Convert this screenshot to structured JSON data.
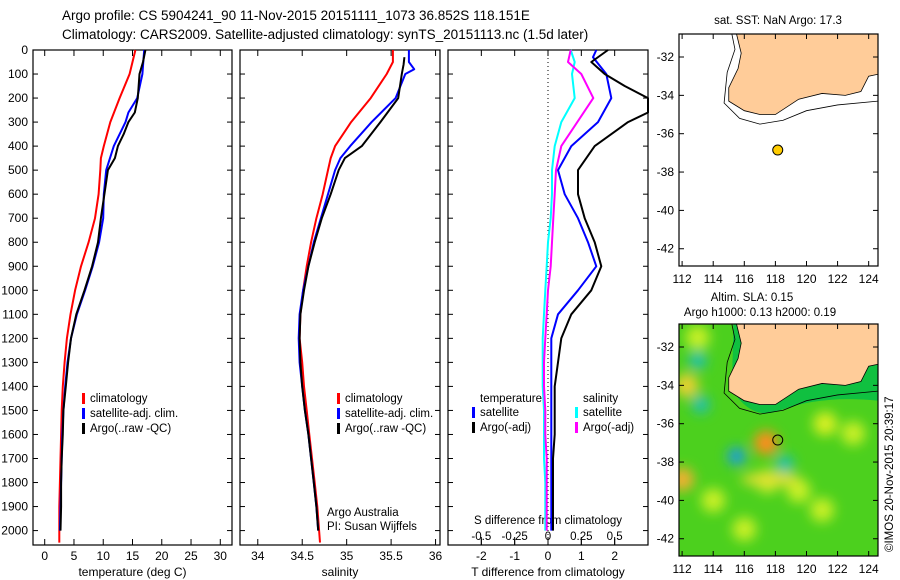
{
  "header": {
    "title_line1": "Argo profile: CS 5904241_90 11-Nov-2015 20151111_1073 36.852S 118.151E",
    "title_line2": "Climatology: CARS2009. Satellite-adjusted climatology: synTS_20151113.nc (1.5d later)"
  },
  "colors": {
    "climatology": "#ff0000",
    "satellite": "#0000ff",
    "argo": "#000000",
    "sal_satellite": "#00ffff",
    "sal_argo": "#ff00ff",
    "land": "#ffcc99",
    "float_marker": "#ffcc00"
  },
  "chart_data": [
    {
      "type": "line",
      "name": "temperature-profile",
      "xlabel": "temperature (deg C)",
      "ylabel": "depth",
      "xlim": [
        -2,
        32
      ],
      "ylim": [
        2060,
        0
      ],
      "xticks": [
        0,
        5,
        10,
        15,
        20,
        25,
        30
      ],
      "yticks": [
        0,
        100,
        200,
        300,
        400,
        500,
        600,
        700,
        800,
        900,
        1000,
        1100,
        1200,
        1300,
        1400,
        1500,
        1600,
        1700,
        1800,
        1900,
        2000
      ],
      "legend": [
        "climatology",
        "satellite-adj. clim.",
        "Argo(..raw -QC)"
      ],
      "legend_position": "middle-center",
      "series": [
        {
          "name": "climatology",
          "depth": [
            0,
            100,
            200,
            300,
            400,
            450,
            500,
            600,
            700,
            800,
            900,
            1000,
            1100,
            1200,
            1300,
            1400,
            1500,
            1600,
            1700,
            1800,
            1900,
            2000,
            2050
          ],
          "values": [
            15.5,
            14.5,
            12.8,
            11.2,
            10.1,
            9.6,
            9.5,
            9.2,
            8.6,
            7.5,
            6.2,
            5.2,
            4.4,
            3.8,
            3.4,
            3.1,
            2.9,
            2.8,
            2.7,
            2.6,
            2.5,
            2.5,
            2.5
          ]
        },
        {
          "name": "satellite-adj. clim.",
          "depth": [
            0,
            100,
            200,
            260,
            300,
            400,
            500,
            600,
            700,
            800,
            900,
            1000,
            1100,
            1200,
            1300,
            1400,
            1500,
            1600,
            1700,
            1800,
            1900,
            2000
          ],
          "values": [
            17.0,
            16.7,
            15.8,
            14.3,
            13.8,
            11.8,
            10.5,
            10.1,
            10.0,
            9.3,
            8.2,
            6.9,
            5.5,
            4.5,
            3.9,
            3.5,
            3.2,
            3.0,
            2.9,
            2.8,
            2.7,
            2.6
          ]
        },
        {
          "name": "Argo(..raw -QC)",
          "depth": [
            0,
            50,
            100,
            200,
            260,
            300,
            350,
            400,
            450,
            500,
            600,
            700,
            800,
            900,
            1000,
            1100,
            1200,
            1300,
            1400,
            1500,
            1600,
            1700,
            1800,
            1900,
            2000
          ],
          "values": [
            17.2,
            16.8,
            16.2,
            15.9,
            15.4,
            14.3,
            13.5,
            12.5,
            12.0,
            10.8,
            10.2,
            9.6,
            9.1,
            8.1,
            6.8,
            5.4,
            4.5,
            4.0,
            3.6,
            3.2,
            3.1,
            2.9,
            2.8,
            2.8,
            2.7
          ]
        }
      ]
    },
    {
      "type": "line",
      "name": "salinity-profile",
      "xlabel": "salinity",
      "ylabel": "depth",
      "xlim": [
        33.8,
        36.05
      ],
      "ylim": [
        2060,
        0
      ],
      "xticks": [
        34,
        34.5,
        35,
        35.5,
        36
      ],
      "legend": [
        "climatology",
        "satellite-adj. clim.",
        "Argo(..raw -QC)"
      ],
      "legend_position": "middle-center",
      "annotation": [
        "Argo Australia",
        "PI: Susan Wijffels"
      ],
      "series": [
        {
          "name": "climatology",
          "depth": [
            0,
            50,
            100,
            200,
            300,
            400,
            450,
            500,
            600,
            700,
            800,
            900,
            1000,
            1100,
            1200,
            1300,
            1400,
            1500,
            1600,
            1700,
            1800,
            1900,
            2000,
            2050
          ],
          "values": [
            35.52,
            35.52,
            35.45,
            35.27,
            35.05,
            34.87,
            34.82,
            34.79,
            34.73,
            34.66,
            34.6,
            34.55,
            34.51,
            34.48,
            34.47,
            34.5,
            34.52,
            34.55,
            34.58,
            34.61,
            34.64,
            34.67,
            34.69,
            34.7
          ]
        },
        {
          "name": "satellite-adj. clim.",
          "depth": [
            0,
            50,
            80,
            100,
            200,
            300,
            400,
            450,
            500,
            600,
            700,
            800,
            900,
            1000,
            1100,
            1200,
            1300,
            1400,
            1500,
            1600,
            1700,
            1800,
            1900,
            2000
          ],
          "values": [
            35.7,
            35.7,
            35.76,
            35.66,
            35.55,
            35.28,
            35.04,
            34.93,
            34.87,
            34.79,
            34.71,
            34.63,
            34.57,
            34.51,
            34.47,
            34.46,
            34.47,
            34.5,
            34.53,
            34.57,
            34.6,
            34.63,
            34.66,
            34.68
          ]
        },
        {
          "name": "Argo(..raw -QC)",
          "depth": [
            30,
            60,
            100,
            200,
            300,
            400,
            450,
            500,
            600,
            700,
            800,
            900,
            1000,
            1100,
            1200,
            1300,
            1400,
            1500,
            1600,
            1700,
            1800,
            1900,
            2000
          ],
          "values": [
            35.65,
            35.64,
            35.62,
            35.58,
            35.38,
            35.17,
            34.98,
            34.91,
            34.82,
            34.72,
            34.64,
            34.57,
            34.52,
            34.48,
            34.47,
            34.48,
            34.5,
            34.53,
            34.57,
            34.6,
            34.63,
            34.66,
            34.68
          ]
        }
      ]
    },
    {
      "type": "line",
      "name": "difference-profile",
      "xlabel": "T difference from climatology",
      "xlabel_top": "S difference from climatology",
      "xlim": [
        -3,
        3
      ],
      "ylim": [
        2060,
        0
      ],
      "xticks": [
        -2,
        -1,
        0,
        1,
        2
      ],
      "xticks_s": [
        -0.5,
        -0.25,
        0,
        0.25,
        0.5
      ],
      "xtick_labels_s": [
        "-0.5",
        "-0.25",
        "0",
        "0.25",
        "0.5"
      ],
      "zero_line": "dotted",
      "legend": {
        "temperature_header": "temperature",
        "salinity_header": "salinity",
        "items": [
          "satellite",
          "Argo(-adj)",
          "satellite",
          "Argo(-adj)"
        ]
      },
      "series": [
        {
          "name": "T satellite",
          "depth": [
            0,
            30,
            100,
            200,
            300,
            400,
            500,
            600,
            700,
            800,
            900,
            1000,
            1100,
            1200,
            1300,
            1400,
            1500,
            1600,
            1700,
            1800,
            1900,
            2000
          ],
          "values": [
            1.45,
            1.35,
            1.75,
            1.9,
            1.5,
            0.7,
            0.3,
            0.5,
            0.9,
            1.2,
            1.45,
            0.9,
            0.3,
            0.1,
            0.1,
            0.1,
            0.1,
            0.1,
            0.1,
            0.1,
            0.1,
            0.1
          ]
        },
        {
          "name": "T Argo(-adj)",
          "depth": [
            0,
            50,
            100,
            150,
            200,
            260,
            300,
            400,
            500,
            600,
            700,
            800,
            900,
            1000,
            1100,
            1200,
            1300,
            1400,
            1500,
            1600,
            1700,
            1800,
            1900,
            2000
          ],
          "values": [
            1.8,
            1.3,
            1.7,
            2.3,
            3.0,
            3.0,
            2.4,
            1.4,
            0.9,
            0.9,
            1.1,
            1.4,
            1.6,
            1.3,
            0.7,
            0.4,
            0.3,
            0.2,
            0.2,
            0.2,
            0.15,
            0.15,
            0.15,
            0.15
          ]
        },
        {
          "name": "S satellite",
          "depth": [
            0,
            50,
            100,
            200,
            300,
            400,
            500,
            600,
            700,
            800,
            900,
            1000,
            1100,
            1200,
            1300,
            1400,
            1500,
            1600,
            1700,
            1800,
            1900,
            2000
          ],
          "values": [
            0.17,
            0.2,
            0.18,
            0.2,
            0.1,
            0.05,
            0.03,
            0.03,
            0.02,
            0.0,
            -0.01,
            -0.02,
            -0.03,
            -0.04,
            -0.04,
            -0.04,
            -0.03,
            -0.03,
            -0.03,
            -0.02,
            -0.02,
            -0.02
          ]
        },
        {
          "name": "S Argo(-adj)",
          "depth": [
            0,
            50,
            100,
            200,
            300,
            400,
            500,
            600,
            700,
            800,
            900,
            1000,
            1100,
            1200,
            1300,
            1400,
            1500,
            1600,
            1700,
            1800,
            1900,
            2000
          ],
          "values": [
            0.17,
            0.15,
            0.25,
            0.34,
            0.22,
            0.1,
            0.06,
            0.05,
            0.04,
            0.03,
            0.02,
            0.0,
            -0.01,
            -0.02,
            -0.03,
            -0.03,
            -0.02,
            -0.02,
            -0.01,
            -0.01,
            -0.01,
            -0.01
          ]
        }
      ]
    },
    {
      "type": "scatter",
      "name": "location-map-sst",
      "title": "sat. SST: NaN Argo: 17.3",
      "xlim": [
        111.8,
        124.6
      ],
      "ylim": [
        -42.9,
        -30.8
      ],
      "xticks": [
        112,
        114,
        116,
        118,
        120,
        122,
        124
      ],
      "yticks": [
        -32,
        -34,
        -36,
        -38,
        -40,
        -42
      ],
      "float_position": {
        "lon": 118.151,
        "lat": -36.852
      }
    },
    {
      "type": "heatmap",
      "name": "location-map-sla",
      "title_line1": "Altim. SLA: 0.15",
      "title_line2": "Argo h1000: 0.13 h2000: 0.19",
      "xlim": [
        111.8,
        124.6
      ],
      "ylim": [
        -42.9,
        -30.8
      ],
      "xticks": [
        112,
        114,
        116,
        118,
        120,
        122,
        124
      ],
      "yticks": [
        -32,
        -34,
        -36,
        -38,
        -40,
        -42
      ],
      "float_position": {
        "lon": 118.151,
        "lat": -36.852
      },
      "features": [
        {
          "kind": "high",
          "lon": 117.4,
          "lat": -37.0,
          "color": "#ff8c1a"
        },
        {
          "kind": "low",
          "lon": 115.5,
          "lat": -37.7,
          "color": "#1e9be0"
        },
        {
          "kind": "low",
          "lon": 118.6,
          "lat": -38.1,
          "color": "#22c0b0"
        },
        {
          "kind": "low",
          "lon": 113.2,
          "lat": -35.0,
          "color": "#22c0b0"
        },
        {
          "kind": "low",
          "lon": 113.0,
          "lat": -32.7,
          "color": "#22c0b0"
        },
        {
          "kind": "high",
          "lon": 112.3,
          "lat": -34.0,
          "color": "#e8d030"
        },
        {
          "kind": "high",
          "lon": 112.0,
          "lat": -38.9,
          "color": "#f0b030"
        },
        {
          "kind": "high",
          "lon": 121.2,
          "lat": -36.0,
          "color": "#d8f020"
        }
      ]
    }
  ],
  "footer": {
    "credit": "©IMOS 20-Nov-2015 20:39:17"
  }
}
